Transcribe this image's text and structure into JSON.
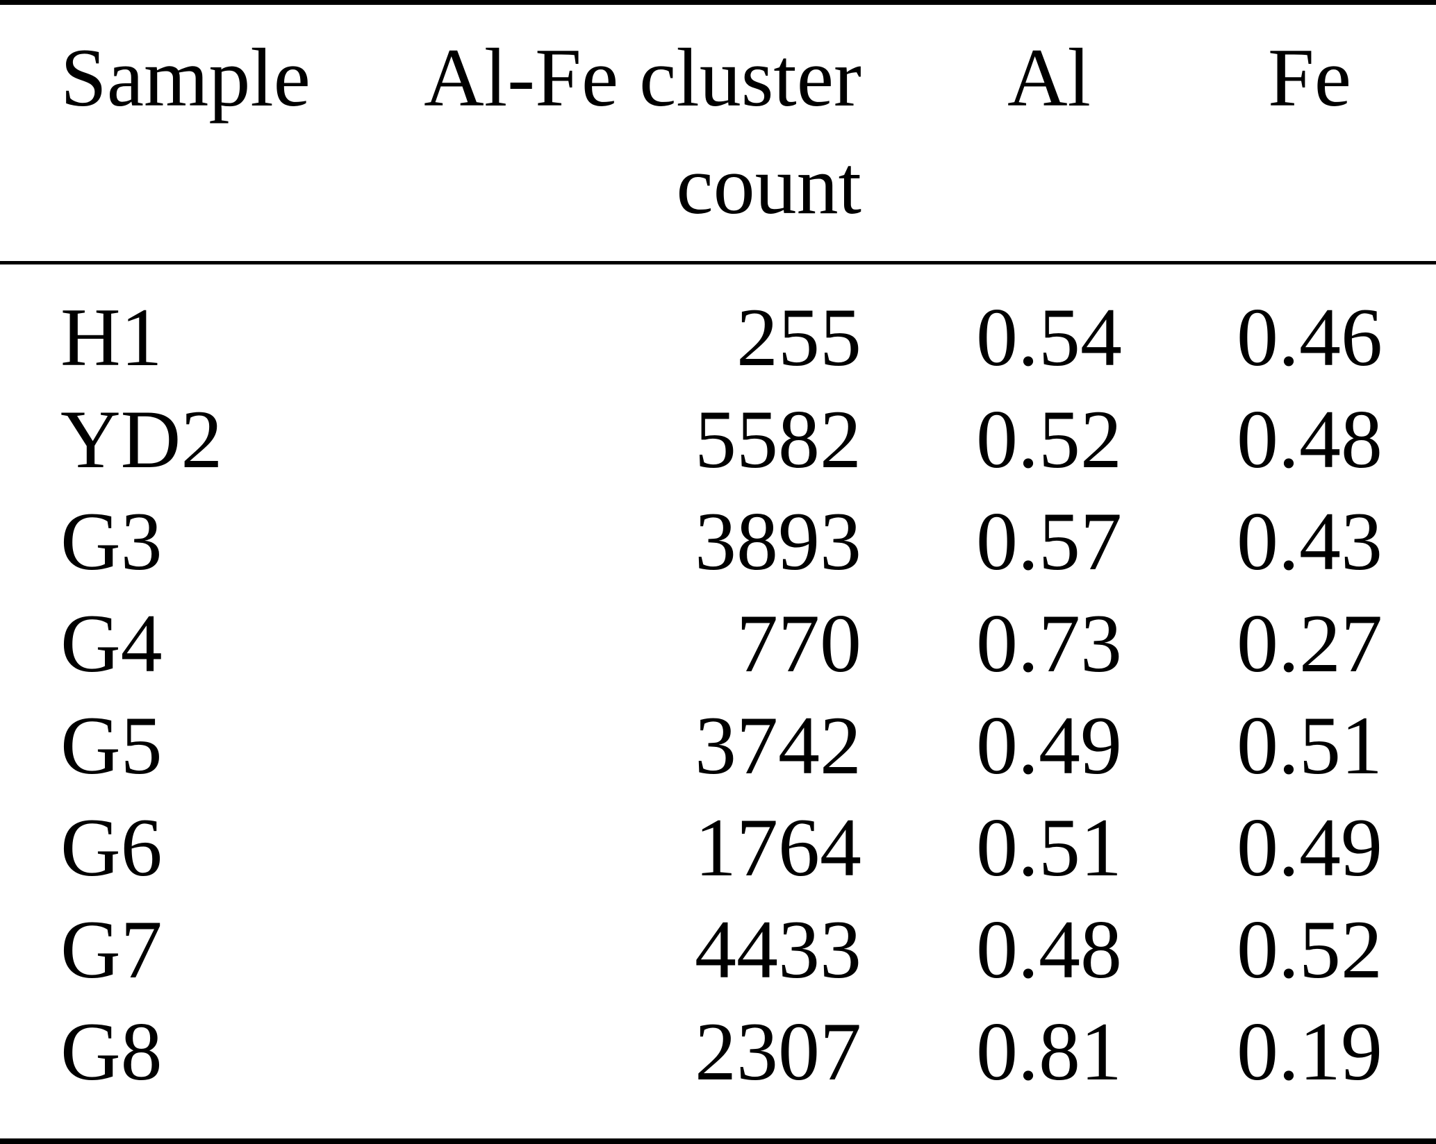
{
  "colors": {
    "background": "#ffffff",
    "text": "#000000",
    "rule": "#000000"
  },
  "table": {
    "headers": {
      "sample": "Sample",
      "count_line1": "Al-Fe cluster",
      "count_line2": "count",
      "al": "Al",
      "fe": "Fe"
    },
    "rows": [
      {
        "sample": "H1",
        "count": "255",
        "al": "0.54",
        "fe": "0.46"
      },
      {
        "sample": "YD2",
        "count": "5582",
        "al": "0.52",
        "fe": "0.48"
      },
      {
        "sample": "G3",
        "count": "3893",
        "al": "0.57",
        "fe": "0.43"
      },
      {
        "sample": "G4",
        "count": "770",
        "al": "0.73",
        "fe": "0.27"
      },
      {
        "sample": "G5",
        "count": "3742",
        "al": "0.49",
        "fe": "0.51"
      },
      {
        "sample": "G6",
        "count": "1764",
        "al": "0.51",
        "fe": "0.49"
      },
      {
        "sample": "G7",
        "count": "4433",
        "al": "0.48",
        "fe": "0.52"
      },
      {
        "sample": "G8",
        "count": "2307",
        "al": "0.81",
        "fe": "0.19"
      }
    ]
  },
  "chart_data": {
    "type": "table",
    "title": "",
    "columns": [
      "Sample",
      "Al-Fe cluster count",
      "Al",
      "Fe"
    ],
    "categories": [
      "H1",
      "YD2",
      "G3",
      "G4",
      "G5",
      "G6",
      "G7",
      "G8"
    ],
    "series": [
      {
        "name": "Al-Fe cluster count",
        "values": [
          255,
          5582,
          3893,
          770,
          3742,
          1764,
          4433,
          2307
        ]
      },
      {
        "name": "Al",
        "values": [
          0.54,
          0.52,
          0.57,
          0.73,
          0.49,
          0.51,
          0.48,
          0.81
        ]
      },
      {
        "name": "Fe",
        "values": [
          0.46,
          0.48,
          0.43,
          0.27,
          0.51,
          0.49,
          0.52,
          0.19
        ]
      }
    ]
  }
}
